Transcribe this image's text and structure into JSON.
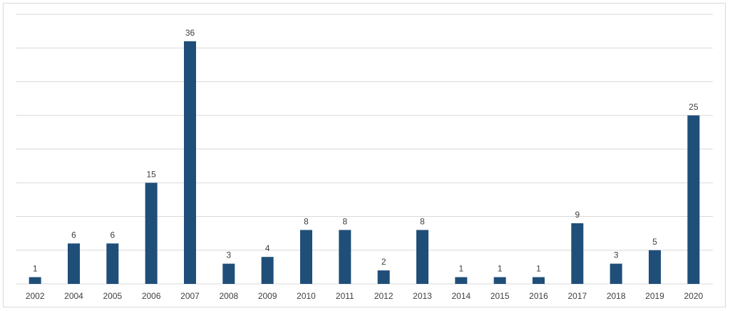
{
  "chart_data": {
    "type": "bar",
    "categories": [
      "2002",
      "2004",
      "2005",
      "2006",
      "2007",
      "2008",
      "2009",
      "2010",
      "2011",
      "2012",
      "2013",
      "2014",
      "2015",
      "2016",
      "2017",
      "2018",
      "2019",
      "2020"
    ],
    "values": [
      1,
      6,
      6,
      15,
      36,
      3,
      4,
      8,
      8,
      2,
      8,
      1,
      1,
      1,
      9,
      3,
      5,
      25
    ],
    "data_labels": [
      "1",
      "6",
      "6",
      "15",
      "36",
      "3",
      "4",
      "8",
      "8",
      "2",
      "8",
      "1",
      "1",
      "1",
      "9",
      "3",
      "5",
      "25"
    ],
    "ylim": [
      0,
      40
    ],
    "gridline_step": 5,
    "grid": true,
    "title": "",
    "xlabel": "",
    "ylabel": "",
    "bar_color": "#1f4e79",
    "gridline_color": "#d9d9d9"
  }
}
